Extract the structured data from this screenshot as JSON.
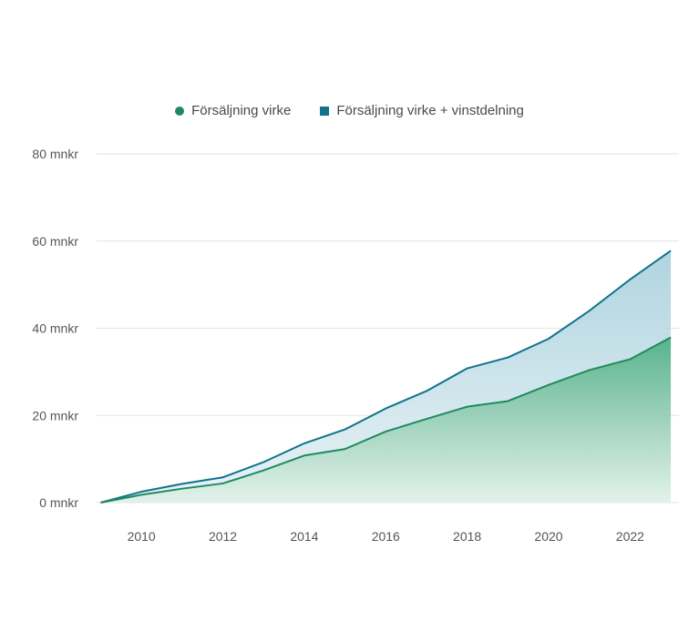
{
  "chart_data": {
    "type": "area",
    "x": [
      2009,
      2010,
      2011,
      2012,
      2013,
      2014,
      2015,
      2016,
      2017,
      2018,
      2019,
      2020,
      2021,
      2022,
      2023
    ],
    "x_ticks": [
      "2010",
      "2012",
      "2014",
      "2016",
      "2018",
      "2020",
      "2022"
    ],
    "y_ticks": [
      "0 mnkr",
      "20 mnkr",
      "40 mnkr",
      "60 mnkr",
      "80 mnkr"
    ],
    "ylim": [
      0,
      80
    ],
    "xlim": [
      2008.9,
      2023.2
    ],
    "grid": true,
    "legend_position": "top-center",
    "series": [
      {
        "name": "Försäljning virke",
        "color": "#1f8a5f",
        "values": [
          0,
          1.8,
          3.2,
          4.4,
          7.4,
          10.8,
          12.3,
          16.3,
          19.2,
          22.0,
          23.3,
          27.0,
          30.4,
          32.9,
          37.9
        ]
      },
      {
        "name": "Försäljning virke + vinstdelning",
        "color": "#11728c",
        "values": [
          0,
          2.5,
          4.3,
          5.8,
          9.3,
          13.6,
          16.8,
          21.6,
          25.6,
          30.8,
          33.3,
          37.6,
          44.0,
          51.2,
          57.8
        ]
      }
    ]
  }
}
